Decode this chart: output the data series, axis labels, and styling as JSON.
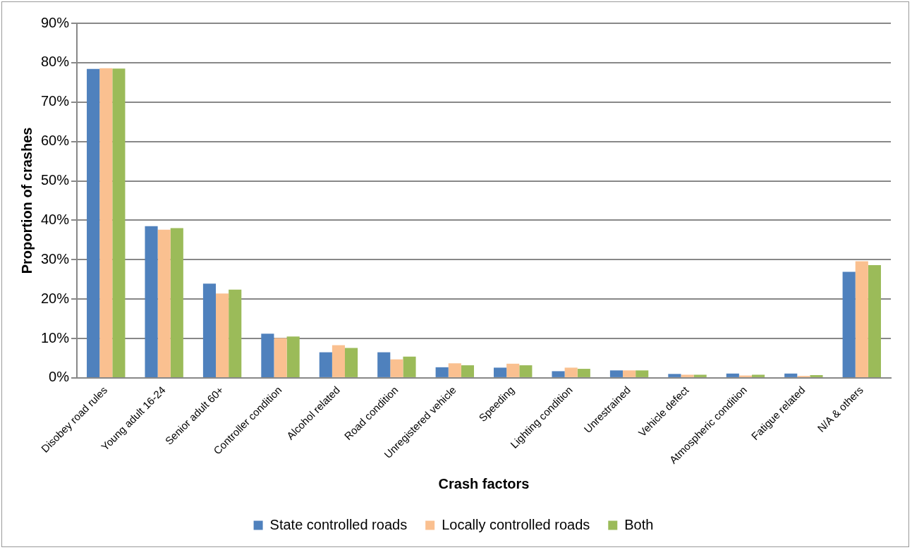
{
  "chart_data": {
    "type": "bar",
    "xlabel": "Crash factors",
    "ylabel": "Proportion of crashes",
    "categories": [
      "Disobey road rules",
      "Young adult 16-24",
      "Senior adult 60+",
      "Controller condition",
      "Alcohol related",
      "Road condition",
      "Unregistered vehicle",
      "Speeding",
      "Lighting condition",
      "Unrestrained",
      "Vehicle defect",
      "Atmospheric condition",
      "Fatigue related",
      "N/A & others"
    ],
    "series": [
      {
        "name": "State controlled roads",
        "color": "#4f81bd",
        "values": [
          78.4,
          38.5,
          23.9,
          11.2,
          6.5,
          6.5,
          2.7,
          2.6,
          1.7,
          1.9,
          1.0,
          1.1,
          1.1,
          26.9
        ]
      },
      {
        "name": "Locally controlled roads",
        "color": "#fac090",
        "values": [
          78.6,
          37.6,
          21.4,
          10.1,
          8.3,
          4.7,
          3.7,
          3.6,
          2.6,
          1.9,
          0.8,
          0.6,
          0.5,
          29.6
        ]
      },
      {
        "name": "Both",
        "color": "#9bbb59",
        "values": [
          78.5,
          38.0,
          22.4,
          10.5,
          7.6,
          5.4,
          3.2,
          3.2,
          2.3,
          1.9,
          0.8,
          0.8,
          0.7,
          28.6
        ]
      }
    ],
    "ylim": [
      0,
      90
    ],
    "yticks": [
      {
        "value": 0,
        "label": "0%"
      },
      {
        "value": 10,
        "label": "10%"
      },
      {
        "value": 20,
        "label": "20%"
      },
      {
        "value": 30,
        "label": "30%"
      },
      {
        "value": 40,
        "label": "40%"
      },
      {
        "value": 50,
        "label": "50%"
      },
      {
        "value": 60,
        "label": "60%"
      },
      {
        "value": 70,
        "label": "70%"
      },
      {
        "value": 80,
        "label": "80%"
      },
      {
        "value": 90,
        "label": "90%"
      }
    ],
    "grid": "y",
    "legend": "bottom"
  }
}
